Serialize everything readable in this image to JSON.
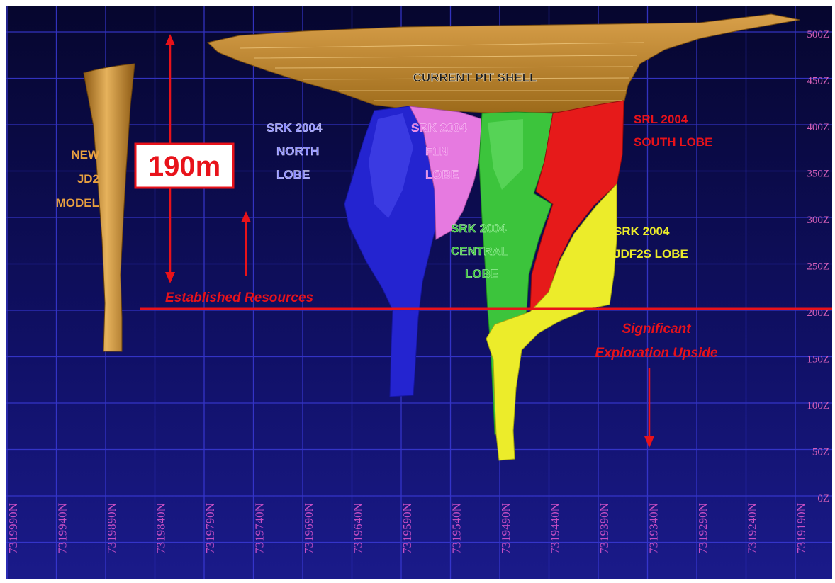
{
  "labels": {
    "pit_shell": "CURRENT PIT SHELL",
    "jd2": [
      "NEW",
      "JD2",
      "MODEL"
    ],
    "depth": "190m",
    "north_lobe": [
      "SRK 2004",
      "NORTH",
      "LOBE"
    ],
    "f1n_lobe": [
      "SRK 2004",
      "F1N",
      "LOBE"
    ],
    "south_lobe": [
      "SRL 2004",
      "SOUTH LOBE"
    ],
    "central_lobe": [
      "SRK 2004",
      "CENTRAL",
      "LOBE"
    ],
    "jdf2s_lobe": [
      "SRK 2004",
      "JDF2S LOBE"
    ],
    "established": "Established Resources",
    "exploration": [
      "Significant",
      "Exploration Upside"
    ]
  },
  "elevation_labels": [
    "500Z",
    "450Z",
    "400Z",
    "350Z",
    "300Z",
    "250Z",
    "200Z",
    "150Z",
    "100Z",
    "50Z",
    "0Z"
  ],
  "northing_labels": [
    "7319990N",
    "7319940N",
    "7319890N",
    "7319840N",
    "7319790N",
    "7319740N",
    "7319690N",
    "7319640N",
    "7319590N",
    "7319540N",
    "7319490N",
    "7319440N",
    "7319390N",
    "7319340N",
    "7319290N",
    "7319240N",
    "7319190N"
  ],
  "colors": {
    "background": "#0c0c4a",
    "grid": "#3a3ad6",
    "pit": "#c8902e",
    "north_lobe": "#2424d0",
    "f1n_lobe": "#e67ae0",
    "central_lobe": "#3cc43c",
    "south_lobe": "#e61a1a",
    "jdf2s_lobe": "#ecec2a",
    "annotation": "#e8121a"
  }
}
